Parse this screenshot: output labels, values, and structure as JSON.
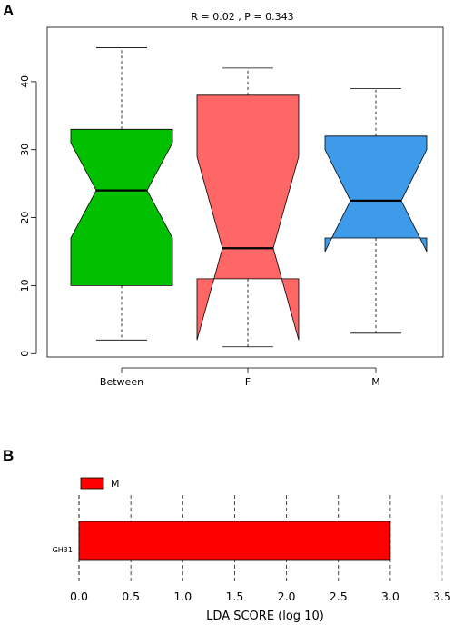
{
  "panels": {
    "a_label": "A",
    "b_label": "B"
  },
  "chart_data": [
    {
      "type": "boxplot",
      "annotation": "R =  0.02 ,  P =  0.343",
      "categories": [
        "Between",
        "F",
        "M"
      ],
      "boxes": [
        {
          "category": "Between",
          "whisker_low": 2,
          "q1": 10,
          "median": 24,
          "q3": 33,
          "whisker_high": 45,
          "notch_low": 17,
          "notch_high": 31,
          "color": "#00c000"
        },
        {
          "category": "F",
          "whisker_low": 1,
          "q1": 11,
          "median": 15.5,
          "q3": 38,
          "whisker_high": 42,
          "notch_low": 2,
          "notch_high": 29,
          "color": "#ff6666"
        },
        {
          "category": "M",
          "whisker_low": 3,
          "q1": 17,
          "median": 22.5,
          "q3": 32,
          "whisker_high": 39,
          "notch_low": 15,
          "notch_high": 30,
          "color": "#3d9be9"
        }
      ],
      "yticks": [
        0,
        10,
        20,
        30,
        40
      ],
      "ylim": [
        -0.5,
        48
      ]
    },
    {
      "type": "bar",
      "orientation": "horizontal",
      "categories": [
        "GH31"
      ],
      "series": [
        {
          "name": "M",
          "values": [
            3.0
          ],
          "color": "#ff0000"
        }
      ],
      "xlabel": "LDA SCORE (log 10)",
      "xticks": [
        0.0,
        0.5,
        1.0,
        1.5,
        2.0,
        2.5,
        3.0,
        3.5
      ],
      "xtick_labels": [
        "0.0",
        "0.5",
        "1.0",
        "1.5",
        "2.0",
        "2.5",
        "3.0",
        "3.5"
      ],
      "xlim": [
        0.0,
        3.5
      ],
      "grid": true,
      "legend": "top-left"
    }
  ]
}
